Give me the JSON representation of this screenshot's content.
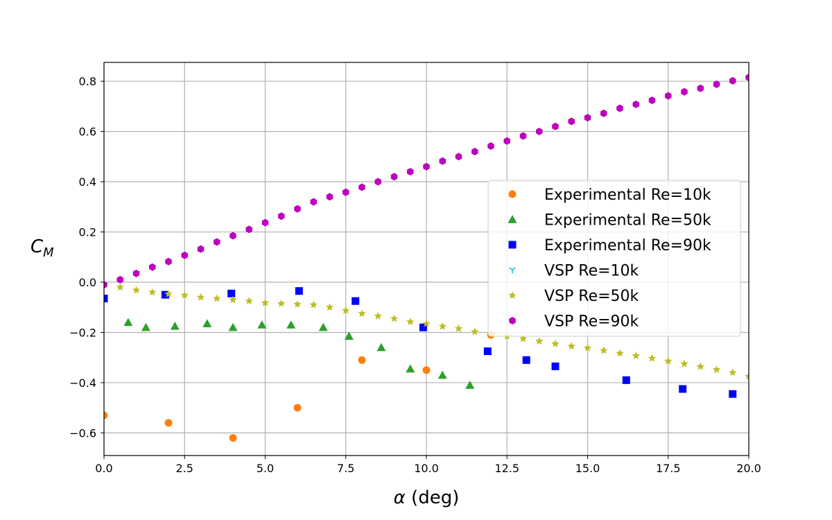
{
  "chart_data": {
    "type": "scatter",
    "title": "",
    "xlabel_symbol": "α",
    "xlabel_unit": "(deg)",
    "ylabel_main": "C",
    "ylabel_sub": "M",
    "xlim": [
      0,
      20
    ],
    "ylim": [
      -0.69,
      0.875
    ],
    "xticks": [
      0,
      2.5,
      5,
      7.5,
      10,
      12.5,
      15,
      17.5,
      20
    ],
    "xtick_labels": [
      "0.0",
      "2.5",
      "5.0",
      "7.5",
      "10.0",
      "12.5",
      "15.0",
      "17.5",
      "20.0"
    ],
    "yticks": [
      -0.6,
      -0.4,
      -0.2,
      0.0,
      0.2,
      0.4,
      0.6,
      0.8
    ],
    "ytick_labels": [
      "−0.6",
      "−0.4",
      "−0.2",
      "0.0",
      "0.2",
      "0.4",
      "0.6",
      "0.8"
    ],
    "grid": true,
    "legend_position": "center-right",
    "series": [
      {
        "name": "Experimental Re=10k",
        "marker": "circle",
        "color": "#ff7f0e",
        "x": [
          0.0,
          2.0,
          4.0,
          6.0,
          8.0,
          10.0,
          12.0
        ],
        "y": [
          -0.53,
          -0.56,
          -0.62,
          -0.5,
          -0.31,
          -0.35,
          -0.21
        ]
      },
      {
        "name": "Experimental Re=50k",
        "marker": "triangle",
        "color": "#2ca02c",
        "x": [
          0.75,
          1.3,
          2.2,
          3.2,
          4.0,
          4.9,
          5.8,
          6.8,
          7.6,
          8.6,
          9.5,
          10.5,
          11.35
        ],
        "y": [
          -0.16,
          -0.18,
          -0.175,
          -0.165,
          -0.18,
          -0.17,
          -0.17,
          -0.18,
          -0.215,
          -0.26,
          -0.345,
          -0.37,
          -0.41
        ]
      },
      {
        "name": "Experimental Re=90k",
        "marker": "square",
        "color": "#0000ff",
        "x": [
          0.0,
          1.9,
          3.95,
          6.05,
          7.8,
          9.9,
          11.9,
          13.1,
          14.0,
          16.2,
          17.95,
          19.5
        ],
        "y": [
          -0.065,
          -0.05,
          -0.045,
          -0.035,
          -0.075,
          -0.18,
          -0.275,
          -0.31,
          -0.335,
          -0.39,
          -0.425,
          -0.445
        ]
      },
      {
        "name": "VSP Re=10k",
        "marker": "tri_down",
        "color": "#17becf",
        "x": [],
        "y": []
      },
      {
        "name": "VSP Re=50k",
        "marker": "star",
        "color": "#bcbd22",
        "x": [
          0.0,
          0.5,
          1.0,
          1.5,
          2.0,
          2.5,
          3.0,
          3.5,
          4.0,
          4.5,
          5.0,
          5.5,
          6.0,
          6.5,
          7.0,
          7.5,
          8.0,
          8.5,
          9.0,
          9.5,
          10.0,
          10.5,
          11.0,
          11.5,
          12.0,
          12.5,
          13.0,
          13.5,
          14.0,
          14.5,
          15.0,
          15.5,
          16.0,
          16.5,
          17.0,
          17.5,
          18.0,
          18.5,
          19.0,
          19.5,
          20.0
        ],
        "y": [
          -0.01,
          -0.02,
          -0.032,
          -0.04,
          -0.047,
          -0.052,
          -0.06,
          -0.065,
          -0.07,
          -0.075,
          -0.082,
          -0.085,
          -0.088,
          -0.09,
          -0.1,
          -0.113,
          -0.125,
          -0.135,
          -0.145,
          -0.158,
          -0.165,
          -0.176,
          -0.185,
          -0.197,
          -0.205,
          -0.215,
          -0.225,
          -0.235,
          -0.245,
          -0.255,
          -0.262,
          -0.272,
          -0.283,
          -0.293,
          -0.303,
          -0.314,
          -0.325,
          -0.336,
          -0.348,
          -0.36,
          -0.375
        ]
      },
      {
        "name": "VSP Re=90k",
        "marker": "hexagon",
        "color": "#bf00bf",
        "x": [
          0.0,
          0.5,
          1.0,
          1.5,
          2.0,
          2.5,
          3.0,
          3.5,
          4.0,
          4.5,
          5.0,
          5.5,
          6.0,
          6.5,
          7.0,
          7.5,
          8.0,
          8.5,
          9.0,
          9.5,
          10.0,
          10.5,
          11.0,
          11.5,
          12.0,
          12.5,
          13.0,
          13.5,
          14.0,
          14.5,
          15.0,
          15.5,
          16.0,
          16.5,
          17.0,
          17.5,
          18.0,
          18.5,
          19.0,
          19.5,
          20.0
        ],
        "y": [
          -0.01,
          0.01,
          0.035,
          0.06,
          0.082,
          0.107,
          0.132,
          0.16,
          0.185,
          0.21,
          0.237,
          0.263,
          0.292,
          0.32,
          0.34,
          0.358,
          0.378,
          0.4,
          0.42,
          0.44,
          0.46,
          0.482,
          0.5,
          0.52,
          0.542,
          0.562,
          0.582,
          0.6,
          0.62,
          0.64,
          0.655,
          0.672,
          0.692,
          0.708,
          0.724,
          0.742,
          0.758,
          0.772,
          0.788,
          0.802,
          0.815
        ]
      }
    ]
  }
}
